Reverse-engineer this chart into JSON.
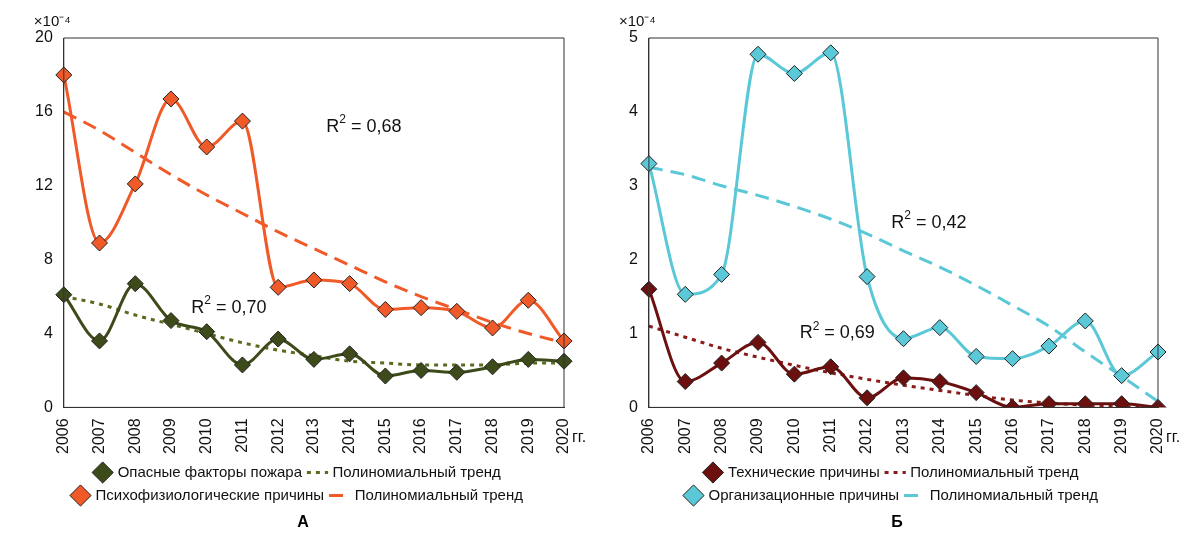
{
  "chart_data": [
    {
      "type": "line",
      "title": "А",
      "ylabel": "×10⁻⁴",
      "xlabel": "гг.",
      "categories": [
        "2006",
        "2007",
        "2008",
        "2009",
        "2010",
        "2011",
        "2012",
        "2013",
        "2014",
        "2015",
        "2016",
        "2017",
        "2018",
        "2019",
        "2020"
      ],
      "series": [
        {
          "name": "Опасные факторы пожара",
          "color": "#3d4a1a",
          "marker": "diamond",
          "line_style": "solid",
          "values": [
            6.1,
            3.6,
            6.7,
            4.7,
            4.1,
            2.3,
            3.7,
            2.6,
            2.9,
            1.7,
            2.0,
            1.9,
            2.2,
            2.6,
            2.5
          ]
        },
        {
          "name": "Полиномиальный тренд",
          "color": "#5a6a1e",
          "marker": "none",
          "line_style": "dotted",
          "values": [
            6.0,
            5.6,
            5.0,
            4.5,
            4.0,
            3.5,
            3.1,
            2.8,
            2.5,
            2.4,
            2.3,
            2.3,
            2.3,
            2.4,
            2.4
          ]
        },
        {
          "name": "Психофизиологические причины",
          "color": "#f05a28",
          "marker": "diamond",
          "line_style": "solid",
          "values": [
            18,
            8.9,
            12.1,
            16.7,
            14.1,
            15.5,
            6.5,
            6.9,
            6.7,
            5.3,
            5.4,
            5.2,
            4.3,
            5.8,
            3.6
          ]
        },
        {
          "name": "Полиномиальный тренд",
          "color": "#f05a28",
          "marker": "none",
          "line_style": "dashed",
          "values": [
            16,
            15,
            13.8,
            12.6,
            11.5,
            10.5,
            9.5,
            8.6,
            7.7,
            6.8,
            6.0,
            5.3,
            4.6,
            4.0,
            3.5
          ]
        }
      ],
      "ylim": [
        0,
        20
      ],
      "yticks": [
        0,
        4,
        8,
        12,
        16,
        20
      ],
      "grid": false,
      "legend": "bottom",
      "annotations": [
        "R$^{2}$ = 0,68",
        "R$^{2}$ = 0,70"
      ]
    },
    {
      "type": "line",
      "title": "Б",
      "ylabel": "×10⁻⁴",
      "xlabel": "гг.",
      "categories": [
        "2006",
        "2007",
        "2008",
        "2009",
        "2010",
        "2011",
        "2012",
        "2013",
        "2014",
        "2015",
        "2016",
        "2017",
        "2018",
        "2019",
        "2020"
      ],
      "series": [
        {
          "name": "Технические причины",
          "color": "#6b0f0f",
          "marker": "diamond",
          "line_style": "solid",
          "values": [
            1.6,
            0.35,
            0.6,
            0.88,
            0.45,
            0.55,
            0.13,
            0.4,
            0.35,
            0.2,
            0,
            0.05,
            0.05,
            0.05,
            0
          ]
        },
        {
          "name": "Полиномиальный тренд",
          "color": "#8b1a1a",
          "marker": "none",
          "line_style": "dotted",
          "values": [
            1.1,
            0.95,
            0.8,
            0.68,
            0.57,
            0.47,
            0.38,
            0.3,
            0.23,
            0.16,
            0.1,
            0.06,
            0.03,
            0.01,
            0
          ]
        },
        {
          "name": "Организационные причины",
          "color": "#5bc8d8",
          "marker": "diamond",
          "line_style": "solid",
          "values": [
            3.3,
            1.53,
            1.8,
            4.78,
            4.52,
            4.8,
            1.77,
            0.93,
            1.08,
            0.69,
            0.66,
            0.83,
            1.17,
            0.43,
            0.75
          ]
        },
        {
          "name": "Полиномиальный тренд",
          "color": "#5bc8d8",
          "marker": "none",
          "line_style": "dashed",
          "values": [
            3.25,
            3.15,
            3.0,
            2.87,
            2.72,
            2.55,
            2.35,
            2.12,
            1.9,
            1.65,
            1.38,
            1.1,
            0.75,
            0.42,
            0.08
          ]
        }
      ],
      "ylim": [
        0,
        5
      ],
      "yticks": [
        0,
        1,
        2,
        3,
        4,
        5
      ],
      "grid": false,
      "legend": "bottom",
      "annotations": [
        "R$^{2}$ = 0,42",
        "R$^{2}$ = 0,69"
      ]
    }
  ]
}
